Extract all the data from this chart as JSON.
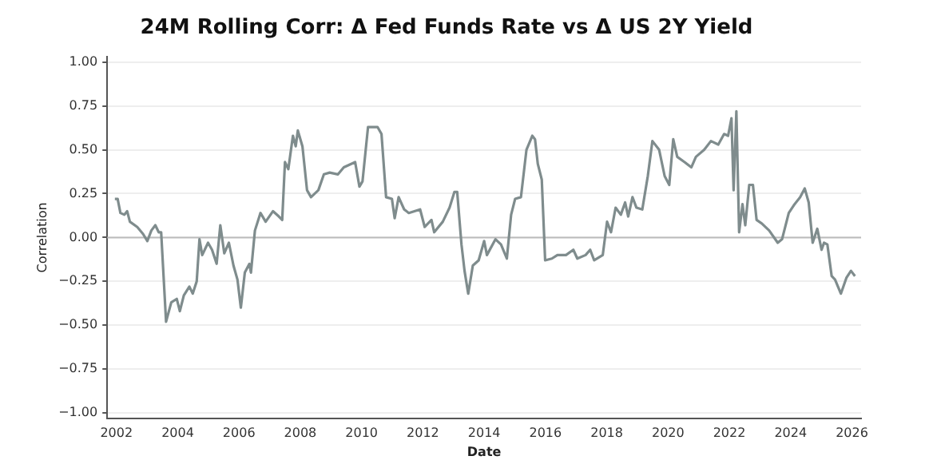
{
  "chart_data": {
    "type": "line",
    "title": "24M Rolling Corr: Δ Fed Funds Rate vs Δ US 2Y Yield",
    "xlabel": "Date",
    "ylabel": "Correlation",
    "x": [
      2001.95,
      2002.04,
      2002.13,
      2002.26,
      2002.35,
      2002.44,
      2002.68,
      2002.87,
      2003.01,
      2003.14,
      2003.27,
      2003.38,
      2003.46,
      2003.62,
      2003.79,
      2003.97,
      2004.07,
      2004.2,
      2004.38,
      2004.49,
      2004.62,
      2004.71,
      2004.8,
      2004.99,
      2005.12,
      2005.27,
      2005.39,
      2005.52,
      2005.67,
      2005.82,
      2005.95,
      2006.06,
      2006.19,
      2006.34,
      2006.39,
      2006.52,
      2006.7,
      2006.87,
      2007.11,
      2007.3,
      2007.41,
      2007.5,
      2007.61,
      2007.76,
      2007.85,
      2007.92,
      2008.07,
      2008.22,
      2008.35,
      2008.59,
      2008.77,
      2008.96,
      2009.23,
      2009.42,
      2009.79,
      2009.93,
      2010.03,
      2010.21,
      2010.52,
      2010.65,
      2010.8,
      2010.99,
      2011.08,
      2011.21,
      2011.39,
      2011.54,
      2011.91,
      2012.06,
      2012.28,
      2012.37,
      2012.65,
      2012.87,
      2013.03,
      2013.12,
      2013.26,
      2013.36,
      2013.48,
      2013.63,
      2013.82,
      2014.0,
      2014.09,
      2014.37,
      2014.55,
      2014.74,
      2014.88,
      2015.01,
      2015.2,
      2015.38,
      2015.57,
      2015.66,
      2015.75,
      2015.88,
      2015.99,
      2016.21,
      2016.39,
      2016.67,
      2016.91,
      2017.04,
      2017.31,
      2017.46,
      2017.59,
      2017.87,
      2018.01,
      2018.14,
      2018.29,
      2018.46,
      2018.6,
      2018.7,
      2018.84,
      2018.97,
      2019.16,
      2019.34,
      2019.49,
      2019.71,
      2019.89,
      2020.04,
      2020.17,
      2020.3,
      2020.54,
      2020.76,
      2020.91,
      2021.18,
      2021.4,
      2021.64,
      2021.83,
      2021.96,
      2022.07,
      2022.14,
      2022.23,
      2022.32,
      2022.43,
      2022.52,
      2022.65,
      2022.77,
      2022.89,
      2023.06,
      2023.3,
      2023.58,
      2023.72,
      2023.94,
      2024.13,
      2024.31,
      2024.46,
      2024.59,
      2024.72,
      2024.87,
      2025.01,
      2025.09,
      2025.2,
      2025.34,
      2025.45,
      2025.64,
      2025.82,
      2025.97,
      2026.1
    ],
    "series": [
      {
        "color": "#7f8c8d",
        "values": [
          0.22,
          0.22,
          0.14,
          0.13,
          0.15,
          0.09,
          0.06,
          0.02,
          -0.02,
          0.04,
          0.07,
          0.03,
          0.03,
          -0.48,
          -0.37,
          -0.35,
          -0.42,
          -0.33,
          -0.28,
          -0.32,
          -0.25,
          -0.01,
          -0.1,
          -0.03,
          -0.07,
          -0.15,
          0.07,
          -0.09,
          -0.03,
          -0.16,
          -0.24,
          -0.4,
          -0.2,
          -0.15,
          -0.2,
          0.04,
          0.14,
          0.09,
          0.15,
          0.12,
          0.1,
          0.43,
          0.39,
          0.58,
          0.52,
          0.61,
          0.52,
          0.27,
          0.23,
          0.27,
          0.36,
          0.37,
          0.36,
          0.4,
          0.43,
          0.29,
          0.32,
          0.63,
          0.63,
          0.59,
          0.23,
          0.22,
          0.11,
          0.23,
          0.16,
          0.14,
          0.16,
          0.06,
          0.1,
          0.03,
          0.09,
          0.17,
          0.26,
          0.26,
          -0.04,
          -0.19,
          -0.32,
          -0.16,
          -0.13,
          -0.02,
          -0.1,
          -0.01,
          -0.04,
          -0.12,
          0.13,
          0.22,
          0.23,
          0.5,
          0.58,
          0.56,
          0.42,
          0.33,
          -0.13,
          -0.12,
          -0.1,
          -0.1,
          -0.07,
          -0.12,
          -0.1,
          -0.07,
          -0.13,
          -0.1,
          0.09,
          0.03,
          0.17,
          0.13,
          0.2,
          0.12,
          0.23,
          0.17,
          0.16,
          0.35,
          0.55,
          0.5,
          0.35,
          0.3,
          0.56,
          0.46,
          0.43,
          0.4,
          0.46,
          0.5,
          0.55,
          0.53,
          0.59,
          0.58,
          0.68,
          0.27,
          0.72,
          0.03,
          0.19,
          0.07,
          0.3,
          0.3,
          0.1,
          0.08,
          0.04,
          -0.03,
          -0.01,
          0.14,
          0.19,
          0.23,
          0.28,
          0.2,
          -0.03,
          0.05,
          -0.07,
          -0.03,
          -0.04,
          -0.22,
          -0.24,
          -0.32,
          -0.23,
          -0.19,
          -0.22
        ]
      }
    ],
    "xlim": [
      2001.7,
      2026.3
    ],
    "xticks": [
      2002,
      2004,
      2006,
      2008,
      2010,
      2012,
      2014,
      2016,
      2018,
      2020,
      2022,
      2024,
      2026
    ],
    "ylim": [
      -1.03,
      1.03
    ],
    "yticks": [
      {
        "value": -1,
        "label": "−1.00"
      },
      {
        "value": -0.75,
        "label": "−0.75"
      },
      {
        "value": -0.5,
        "label": "−0.50"
      },
      {
        "value": -0.25,
        "label": "−0.25"
      },
      {
        "value": 0,
        "label": "0.00"
      },
      {
        "value": 0.25,
        "label": "0.25"
      },
      {
        "value": 0.5,
        "label": "0.50"
      },
      {
        "value": 0.75,
        "label": "0.75"
      },
      {
        "value": 1,
        "label": "1.00"
      }
    ],
    "ref_lines": [
      {
        "axis": "y",
        "value": 0,
        "color": "#bbbbbb"
      }
    ],
    "grid": "y",
    "marker": "none",
    "line_style": "solid",
    "legend": false
  }
}
